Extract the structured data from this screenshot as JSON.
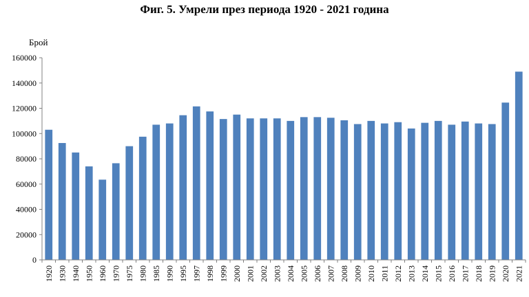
{
  "chart_data": {
    "type": "bar",
    "title": "Фиг. 5. Умрели през периода 1920 - 2021 година",
    "xlabel": "",
    "ylabel": "Брой",
    "ylim": [
      0,
      160000
    ],
    "yticks": [
      0,
      20000,
      40000,
      60000,
      80000,
      100000,
      120000,
      140000,
      160000
    ],
    "grid": false,
    "bar_color": "#4f81bd",
    "categories": [
      "1920",
      "1930",
      "1940",
      "1950",
      "1960",
      "1970",
      "1975",
      "1980",
      "1985",
      "1990",
      "1995",
      "1997",
      "1998",
      "1999",
      "2000",
      "2001",
      "2002",
      "2003",
      "2004",
      "2005",
      "2006",
      "2007",
      "2008",
      "2009",
      "2010",
      "2011",
      "2012",
      "2013",
      "2014",
      "2015",
      "2016",
      "2017",
      "2018",
      "2019",
      "2020",
      "2021"
    ],
    "values": [
      103000,
      92500,
      85000,
      74000,
      63500,
      76500,
      90000,
      97500,
      107000,
      108000,
      114500,
      121500,
      117500,
      111500,
      115000,
      112000,
      112000,
      112000,
      110000,
      113000,
      113000,
      112500,
      110500,
      107500,
      110000,
      108000,
      109000,
      104000,
      108500,
      110000,
      107000,
      109500,
      108000,
      107500,
      124500,
      149000
    ]
  }
}
